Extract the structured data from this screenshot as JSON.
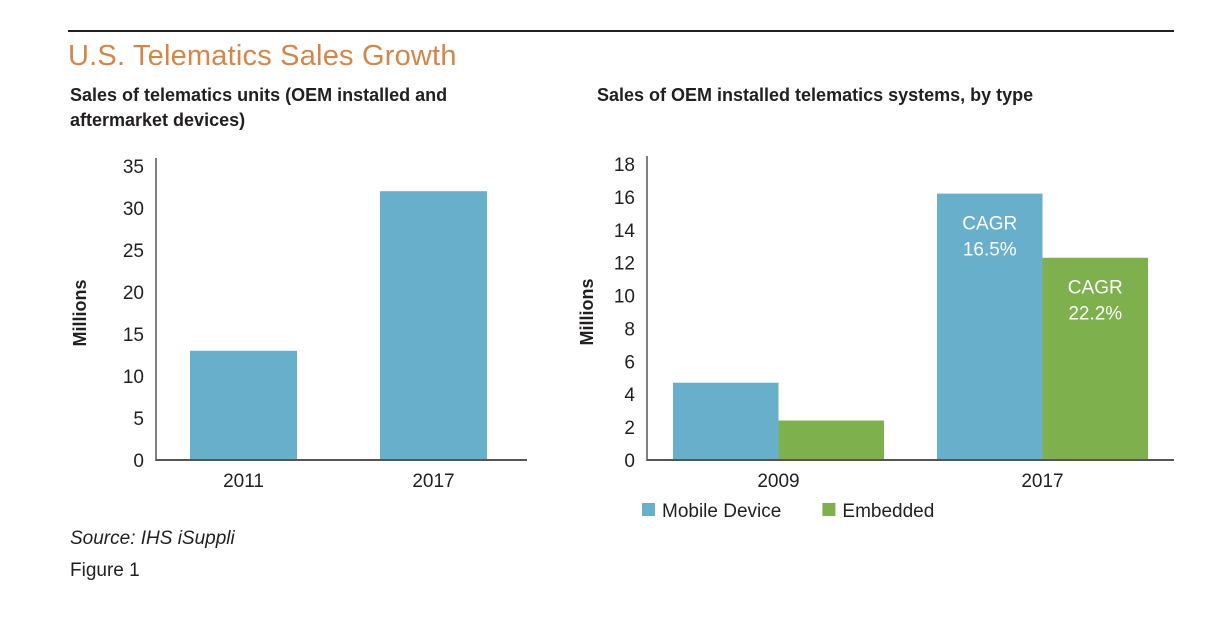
{
  "page": {
    "title": "U.S. Telematics Sales Growth",
    "source": "Source: IHS iSuppli",
    "figure_label": "Figure 1"
  },
  "colors": {
    "title": "#d3864a",
    "mobile_device": "#68afcb",
    "embedded": "#7eb04d",
    "axis": "#555555"
  },
  "chart_data": [
    {
      "type": "bar",
      "title": "Sales of telematics units (OEM installed and aftermarket devices)",
      "xlabel": "",
      "ylabel": "Millions",
      "categories": [
        "2011",
        "2017"
      ],
      "values": [
        13,
        32
      ],
      "ylim": [
        0,
        35
      ],
      "yticks": [
        0,
        5,
        10,
        15,
        20,
        25,
        30,
        35
      ],
      "grid": false,
      "legend": "none"
    },
    {
      "type": "bar",
      "title": "Sales of OEM installed telematics systems, by type",
      "xlabel": "",
      "ylabel": "Millions",
      "categories": [
        "2009",
        "2017"
      ],
      "series": [
        {
          "name": "Mobile Device",
          "values": [
            4.7,
            16.2
          ]
        },
        {
          "name": "Embedded",
          "values": [
            2.4,
            12.3
          ]
        }
      ],
      "annotations": [
        {
          "series": "Mobile Device",
          "category": "2017",
          "lines": [
            "CAGR",
            "16.5%"
          ]
        },
        {
          "series": "Embedded",
          "category": "2017",
          "lines": [
            "CAGR",
            "22.2%"
          ]
        }
      ],
      "ylim": [
        0,
        18
      ],
      "yticks": [
        0,
        2,
        4,
        6,
        8,
        10,
        12,
        14,
        16,
        18
      ],
      "grid": false,
      "legend": "bottom-left"
    }
  ]
}
